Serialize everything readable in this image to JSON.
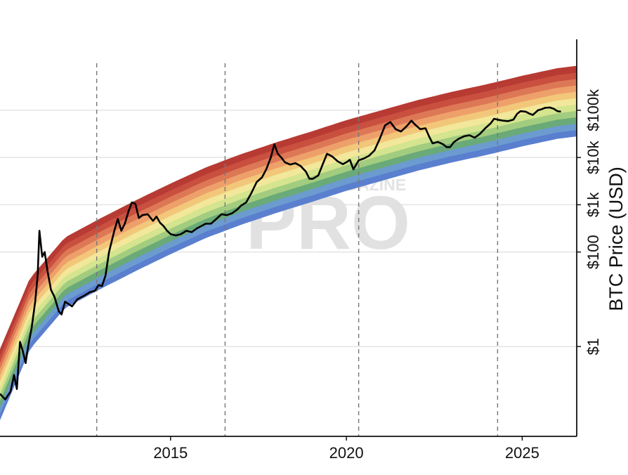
{
  "chart_data": {
    "type": "line",
    "title": "",
    "xlabel": "",
    "ylabel": "BTC Price (USD)",
    "y_scale": "log",
    "xlim": [
      2010.15,
      2026.55
    ],
    "ylim_log10": [
      -1.9,
      6.5
    ],
    "grid": {
      "horizontal": true,
      "vertical_dashed": true
    },
    "x_ticks": [
      {
        "value": 2015,
        "label": "2015"
      },
      {
        "value": 2020,
        "label": "2020"
      },
      {
        "value": 2025,
        "label": "2025"
      }
    ],
    "y_ticks": [
      {
        "value": 1,
        "label": "$1"
      },
      {
        "value": 100,
        "label": "$100"
      },
      {
        "value": 1000,
        "label": "$1k"
      },
      {
        "value": 10000,
        "label": "$10k"
      },
      {
        "value": 100000,
        "label": "$100k"
      }
    ],
    "vertical_markers_year": [
      2012.9,
      2016.55,
      2020.35,
      2024.3
    ],
    "rainbow": {
      "band_colors": [
        "#5a7fcf",
        "#6c9bd0",
        "#6aaa78",
        "#a2cc7f",
        "#d4e48f",
        "#f2e79a",
        "#f2c77a",
        "#eea06b",
        "#dd7856",
        "#c94f3f",
        "#b73a33"
      ],
      "base_curve_log10": [
        [
          2010.15,
          -1.55
        ],
        [
          2011,
          -0.05
        ],
        [
          2012,
          0.82
        ],
        [
          2013,
          1.22
        ],
        [
          2014,
          1.6
        ],
        [
          2015,
          1.96
        ],
        [
          2016,
          2.3
        ],
        [
          2017,
          2.58
        ],
        [
          2018,
          2.83
        ],
        [
          2019,
          3.06
        ],
        [
          2020,
          3.3
        ],
        [
          2021,
          3.51
        ],
        [
          2022,
          3.72
        ],
        [
          2023,
          3.9
        ],
        [
          2024,
          4.06
        ],
        [
          2025,
          4.24
        ],
        [
          2026,
          4.4
        ],
        [
          2026.55,
          4.45
        ]
      ],
      "band_width_log10": 0.135
    },
    "series": [
      {
        "name": "",
        "color": "#000000",
        "points": [
          [
            2010.15,
            -1.0
          ],
          [
            2010.3,
            -1.12
          ],
          [
            2010.45,
            -0.95
          ],
          [
            2010.55,
            -0.6
          ],
          [
            2010.63,
            -0.9
          ],
          [
            2010.72,
            0.1
          ],
          [
            2010.8,
            -0.1
          ],
          [
            2010.88,
            -0.35
          ],
          [
            2010.95,
            0.0
          ],
          [
            2011.05,
            0.4
          ],
          [
            2011.15,
            0.95
          ],
          [
            2011.22,
            1.5
          ],
          [
            2011.27,
            2.45
          ],
          [
            2011.35,
            1.9
          ],
          [
            2011.42,
            2.0
          ],
          [
            2011.5,
            1.6
          ],
          [
            2011.6,
            1.2
          ],
          [
            2011.7,
            1.05
          ],
          [
            2011.82,
            0.75
          ],
          [
            2011.9,
            0.68
          ],
          [
            2012.0,
            0.95
          ],
          [
            2012.2,
            0.85
          ],
          [
            2012.35,
            1.0
          ],
          [
            2012.55,
            1.08
          ],
          [
            2012.7,
            1.15
          ],
          [
            2012.85,
            1.18
          ],
          [
            2012.95,
            1.3
          ],
          [
            2013.05,
            1.28
          ],
          [
            2013.15,
            1.5
          ],
          [
            2013.25,
            2.0
          ],
          [
            2013.3,
            2.15
          ],
          [
            2013.4,
            2.45
          ],
          [
            2013.5,
            2.7
          ],
          [
            2013.6,
            2.45
          ],
          [
            2013.7,
            2.6
          ],
          [
            2013.8,
            2.85
          ],
          [
            2013.9,
            3.05
          ],
          [
            2014.0,
            3.02
          ],
          [
            2014.1,
            2.72
          ],
          [
            2014.2,
            2.78
          ],
          [
            2014.35,
            2.8
          ],
          [
            2014.5,
            2.66
          ],
          [
            2014.6,
            2.75
          ],
          [
            2014.7,
            2.62
          ],
          [
            2014.8,
            2.55
          ],
          [
            2014.9,
            2.45
          ],
          [
            2015.0,
            2.38
          ],
          [
            2015.15,
            2.35
          ],
          [
            2015.3,
            2.38
          ],
          [
            2015.45,
            2.45
          ],
          [
            2015.6,
            2.42
          ],
          [
            2015.75,
            2.5
          ],
          [
            2015.9,
            2.56
          ],
          [
            2016.0,
            2.6
          ],
          [
            2016.15,
            2.6
          ],
          [
            2016.3,
            2.7
          ],
          [
            2016.45,
            2.8
          ],
          [
            2016.6,
            2.78
          ],
          [
            2016.75,
            2.82
          ],
          [
            2016.9,
            2.9
          ],
          [
            2017.0,
            2.98
          ],
          [
            2017.15,
            3.05
          ],
          [
            2017.3,
            3.25
          ],
          [
            2017.45,
            3.48
          ],
          [
            2017.6,
            3.58
          ],
          [
            2017.72,
            3.75
          ],
          [
            2017.85,
            4.0
          ],
          [
            2017.95,
            4.28
          ],
          [
            2018.05,
            4.08
          ],
          [
            2018.15,
            4.0
          ],
          [
            2018.25,
            3.9
          ],
          [
            2018.4,
            3.85
          ],
          [
            2018.55,
            3.88
          ],
          [
            2018.7,
            3.82
          ],
          [
            2018.85,
            3.7
          ],
          [
            2018.95,
            3.55
          ],
          [
            2019.05,
            3.55
          ],
          [
            2019.2,
            3.62
          ],
          [
            2019.35,
            3.9
          ],
          [
            2019.45,
            4.08
          ],
          [
            2019.6,
            4.02
          ],
          [
            2019.75,
            3.92
          ],
          [
            2019.9,
            3.86
          ],
          [
            2020.0,
            3.9
          ],
          [
            2020.1,
            3.95
          ],
          [
            2020.2,
            3.75
          ],
          [
            2020.35,
            3.94
          ],
          [
            2020.5,
            3.98
          ],
          [
            2020.65,
            4.04
          ],
          [
            2020.8,
            4.15
          ],
          [
            2020.95,
            4.4
          ],
          [
            2021.1,
            4.68
          ],
          [
            2021.25,
            4.75
          ],
          [
            2021.4,
            4.6
          ],
          [
            2021.55,
            4.55
          ],
          [
            2021.7,
            4.65
          ],
          [
            2021.85,
            4.78
          ],
          [
            2021.95,
            4.7
          ],
          [
            2022.1,
            4.6
          ],
          [
            2022.25,
            4.62
          ],
          [
            2022.35,
            4.45
          ],
          [
            2022.45,
            4.3
          ],
          [
            2022.6,
            4.33
          ],
          [
            2022.75,
            4.28
          ],
          [
            2022.85,
            4.22
          ],
          [
            2022.95,
            4.22
          ],
          [
            2023.05,
            4.32
          ],
          [
            2023.2,
            4.4
          ],
          [
            2023.35,
            4.45
          ],
          [
            2023.5,
            4.47
          ],
          [
            2023.65,
            4.42
          ],
          [
            2023.8,
            4.5
          ],
          [
            2023.95,
            4.62
          ],
          [
            2024.1,
            4.72
          ],
          [
            2024.2,
            4.82
          ],
          [
            2024.3,
            4.8
          ],
          [
            2024.45,
            4.78
          ],
          [
            2024.6,
            4.77
          ],
          [
            2024.75,
            4.8
          ],
          [
            2024.85,
            4.92
          ],
          [
            2024.95,
            4.98
          ],
          [
            2025.1,
            4.97
          ],
          [
            2025.2,
            4.93
          ],
          [
            2025.3,
            4.9
          ],
          [
            2025.45,
            5.0
          ],
          [
            2025.55,
            5.02
          ],
          [
            2025.65,
            5.05
          ],
          [
            2025.78,
            5.06
          ],
          [
            2025.9,
            5.03
          ],
          [
            2026.0,
            4.98
          ],
          [
            2026.1,
            4.97
          ]
        ]
      }
    ],
    "watermark": {
      "top": "IN MAGAZINE",
      "main": "PRO"
    }
  }
}
